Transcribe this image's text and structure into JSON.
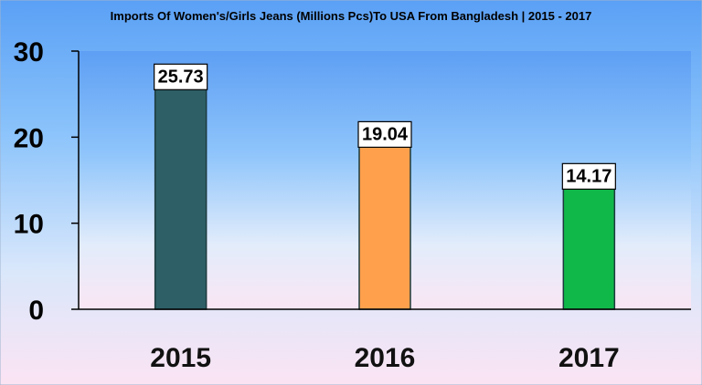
{
  "chart_data": {
    "type": "bar",
    "title": "Imports Of Women's/Girls Jeans (Millions Pcs)To USA From Bangladesh | 2015 - 2017",
    "categories": [
      "2015",
      "2016",
      "2017"
    ],
    "values": [
      25.73,
      19.04,
      14.17
    ],
    "data_labels": [
      "25.73",
      "19.04",
      "14.17"
    ],
    "bar_colors": [
      "#2e5f66",
      "#ffa04d",
      "#10b84a"
    ],
    "yticks": [
      "0",
      "10",
      "20",
      "30"
    ],
    "ylim": [
      0,
      30
    ],
    "xlabel": "",
    "ylabel": "",
    "grid": false,
    "legend": "none"
  }
}
